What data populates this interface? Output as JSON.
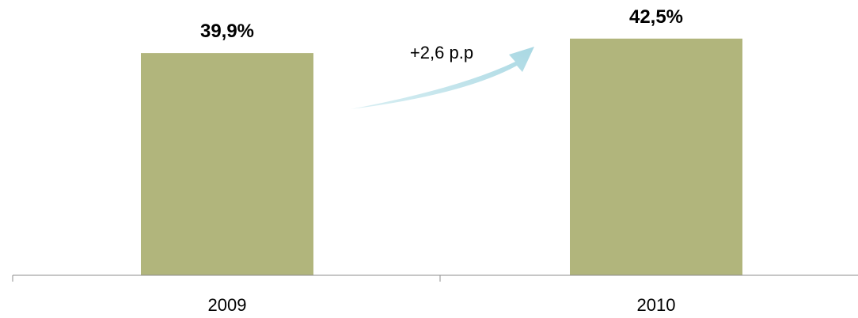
{
  "chart_data": {
    "type": "bar",
    "categories": [
      "2009",
      "2010"
    ],
    "values": [
      39.9,
      42.5
    ],
    "value_labels": [
      "39,9%",
      "42,5%"
    ],
    "annotation": "+2,6 p.p",
    "title": "",
    "xlabel": "",
    "ylabel": "",
    "ylim": [
      0,
      50
    ],
    "grid": false,
    "colors": {
      "bar": "#b1b57c",
      "arrow": "#b9dfe8",
      "axis": "#8c8c8c"
    }
  }
}
